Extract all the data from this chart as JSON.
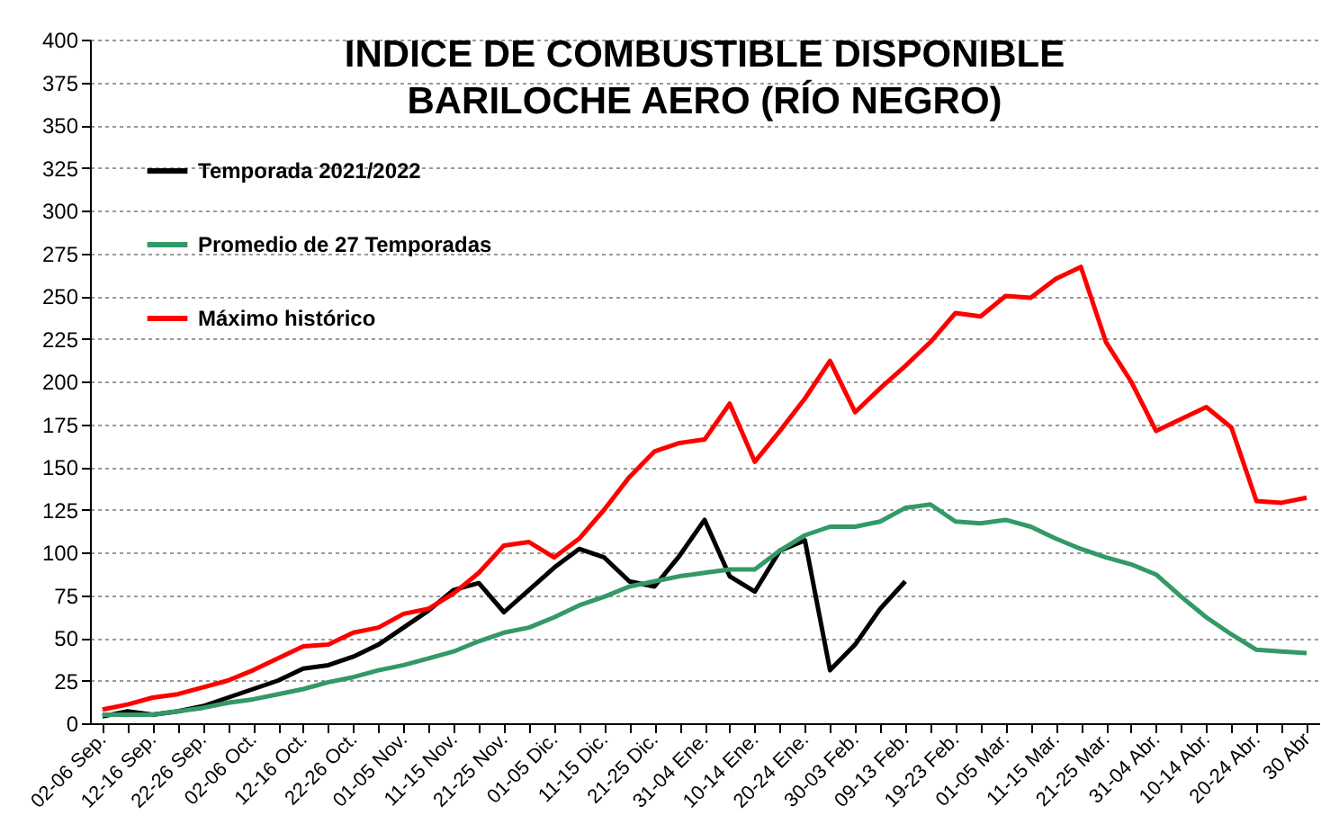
{
  "chart_data": {
    "type": "line",
    "title": "INDICE DE COMBUSTIBLE DISPONIBLE\nBARILOCHE AERO (RÍO NEGRO)",
    "categories": [
      "02-06 Sep.",
      null,
      "12-16 Sep.",
      null,
      "22-26 Sep.",
      null,
      "02-06 Oct.",
      null,
      "12-16 Oct.",
      null,
      "22-26 Oct.",
      null,
      "01-05 Nov.",
      null,
      "11-15 Nov.",
      null,
      "21-25 Nov.",
      null,
      "01-05 Dic.",
      null,
      "11-15 Dic.",
      null,
      "21-25 Dic.",
      null,
      "31-04 Ene.",
      null,
      "10-14 Ene.",
      null,
      "20-24 Ene.",
      null,
      "30-03 Feb.",
      null,
      "09-13 Feb.",
      null,
      "19-23 Feb.",
      null,
      "01-05 Mar.",
      null,
      "11-15 Mar.",
      null,
      "21-25 Mar.",
      null,
      "31-04 Abr.",
      null,
      "10-14 Abr.",
      null,
      "20-24 Abr.",
      null,
      "30 Abr"
    ],
    "series": [
      {
        "name": "Temporada 2021/2022",
        "color": "#000000",
        "values": [
          4,
          7,
          5,
          7,
          10,
          15,
          20,
          25,
          32,
          34,
          39,
          46,
          56,
          66,
          78,
          82,
          65,
          78,
          91,
          102,
          97,
          83,
          80,
          98,
          119,
          86,
          77,
          101,
          107,
          31,
          46,
          67,
          83,
          null,
          null,
          null,
          null,
          null,
          null,
          null,
          null,
          null,
          null,
          null,
          null,
          null,
          null,
          null,
          null
        ]
      },
      {
        "name": "Promedio de 27 Temporadas",
        "color": "#339966",
        "values": [
          5,
          5,
          5,
          7,
          9,
          12,
          14,
          17,
          20,
          24,
          27,
          31,
          34,
          38,
          42,
          48,
          53,
          56,
          62,
          69,
          74,
          80,
          83,
          86,
          88,
          90,
          90,
          101,
          110,
          115,
          115,
          118,
          126,
          128,
          118,
          117,
          119,
          115,
          108,
          102,
          97,
          93,
          87,
          74,
          62,
          52,
          43,
          42,
          41
        ]
      },
      {
        "name": "Máximo histórico",
        "color": "#ff0000",
        "values": [
          8,
          11,
          15,
          17,
          21,
          25,
          31,
          38,
          45,
          46,
          53,
          56,
          64,
          67,
          76,
          88,
          104,
          106,
          97,
          108,
          125,
          144,
          159,
          164,
          166,
          187,
          153,
          171,
          190,
          212,
          182,
          196,
          209,
          223,
          240,
          238,
          250,
          249,
          260,
          267,
          223,
          200,
          171,
          178,
          185,
          173,
          130,
          129,
          132
        ]
      }
    ],
    "ylim": [
      0,
      400
    ],
    "yticks": [
      0,
      25,
      50,
      75,
      100,
      125,
      150,
      175,
      200,
      225,
      250,
      275,
      300,
      325,
      350,
      375,
      400
    ],
    "grid": "y",
    "legend": "top left",
    "line_style": "solid"
  }
}
